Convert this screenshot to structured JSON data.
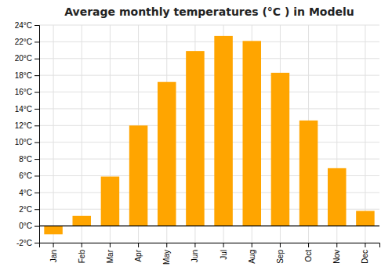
{
  "chart_data": {
    "type": "bar",
    "title": "Average monthly temperatures (°C ) in Modelu",
    "categories": [
      "Jan",
      "Feb",
      "Mar",
      "Apr",
      "May",
      "Jun",
      "Jul",
      "Aug",
      "Sep",
      "Oct",
      "Nov",
      "Dec"
    ],
    "values": [
      -1.0,
      1.2,
      5.9,
      12.0,
      17.2,
      20.9,
      22.7,
      22.1,
      18.3,
      12.6,
      6.9,
      1.8
    ],
    "color": "#FFA500",
    "ylim": [
      -2,
      24
    ],
    "yticks": [
      {
        "value": -2,
        "label": "-2°C"
      },
      {
        "value": 0,
        "label": "0°C"
      },
      {
        "value": 2,
        "label": "2°C"
      },
      {
        "value": 4,
        "label": "4°C"
      },
      {
        "value": 6,
        "label": "6°C"
      },
      {
        "value": 8,
        "label": "8°C"
      },
      {
        "value": 10,
        "label": "10°C"
      },
      {
        "value": 12,
        "label": "12°C"
      },
      {
        "value": 14,
        "label": "14°C"
      },
      {
        "value": 16,
        "label": "16°C"
      },
      {
        "value": 18,
        "label": "18°C"
      },
      {
        "value": 20,
        "label": "20°C"
      },
      {
        "value": 22,
        "label": "22°C"
      },
      {
        "value": 24,
        "label": "24°C"
      }
    ],
    "grid": true
  }
}
